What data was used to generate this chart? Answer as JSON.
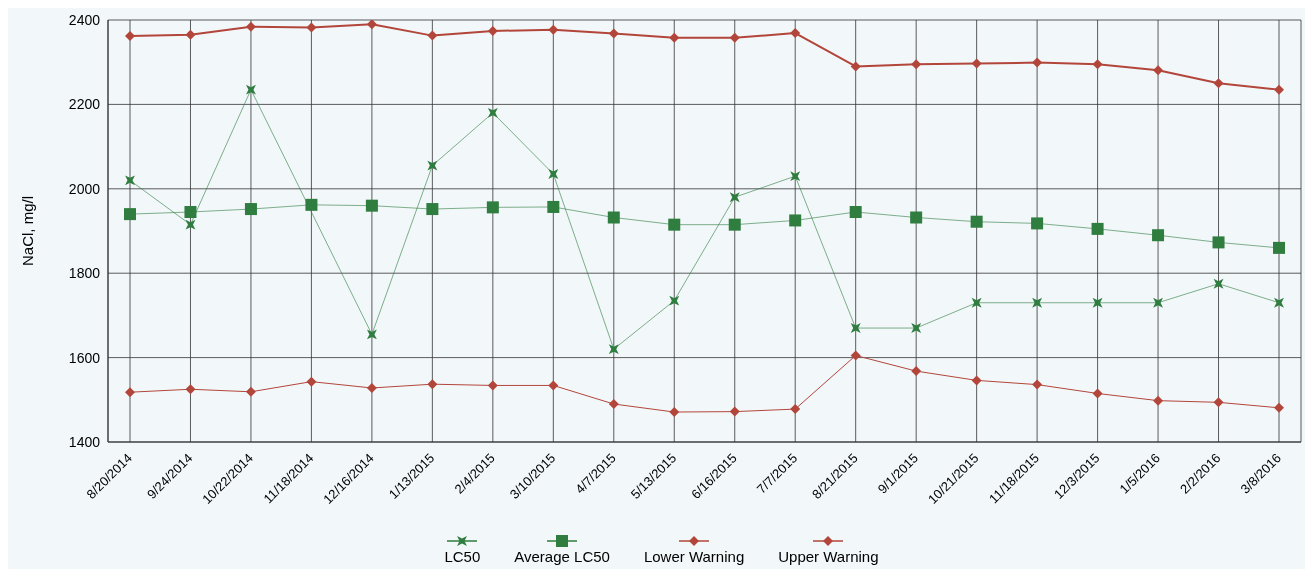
{
  "chart_data": {
    "type": "line",
    "ylabel": "NaCl, mg/l",
    "categories": [
      "8/20/2014",
      "9/24/2014",
      "10/22/2014",
      "11/18/2014",
      "12/16/2014",
      "1/13/2015",
      "2/4/2015",
      "3/10/2015",
      "4/7/2015",
      "5/13/2015",
      "6/16/2015",
      "7/7/2015",
      "8/21/2015",
      "9/1/2015",
      "10/21/2015",
      "11/18/2015",
      "12/3/2015",
      "1/5/2016",
      "2/2/2016",
      "3/8/2016"
    ],
    "series": [
      {
        "name": "LC50",
        "color": "#2f7d3f",
        "marker": "star",
        "values": [
          2020,
          1915,
          2235,
          null,
          1655,
          2055,
          2180,
          2035,
          1620,
          1735,
          1980,
          2030,
          1670,
          1670,
          1730,
          1730,
          1730,
          1730,
          1775,
          1730
        ]
      },
      {
        "name": "Average LC50",
        "color": "#2f7d3f",
        "marker": "square",
        "values": [
          1940,
          1945,
          1952,
          1962,
          1960,
          1952,
          1956,
          1957,
          1932,
          1915,
          1915,
          1925,
          1945,
          1932,
          1922,
          1918,
          1905,
          1890,
          1873,
          1860
        ]
      },
      {
        "name": "Lower Warning",
        "color": "#b3463a",
        "marker": "diamond",
        "values": [
          1518,
          1525,
          1519,
          1543,
          1528,
          1537,
          1534,
          1534,
          1490,
          1471,
          1472,
          1478,
          1605,
          1568,
          1546,
          1536,
          1515,
          1498,
          1494,
          1481
        ]
      },
      {
        "name": "Upper Warning",
        "color": "#b3463a",
        "marker": "diamond",
        "values": [
          2362,
          2365,
          2384,
          2382,
          2390,
          2363,
          2374,
          2377,
          2368,
          2358,
          2358,
          2369,
          2290,
          2295,
          2297,
          2299,
          2295,
          2281,
          2250,
          2235
        ]
      }
    ],
    "ylim": [
      1400,
      2400
    ],
    "yticks": [
      1400,
      1600,
      1800,
      2000,
      2200,
      2400
    ],
    "grid": true,
    "legend": "bottom",
    "line_style": "solid"
  }
}
